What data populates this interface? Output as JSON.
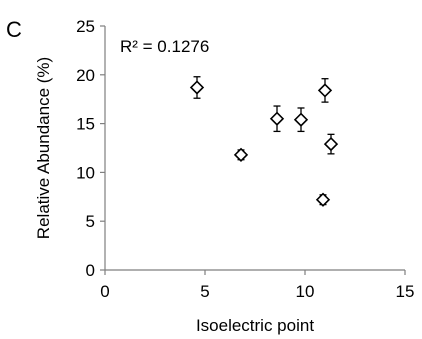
{
  "panel_label": "C",
  "chart_data": {
    "type": "scatter",
    "title": "",
    "xlabel": "Isoelectric point",
    "ylabel": "Relative Abundance (%)",
    "xlim": [
      0,
      15
    ],
    "ylim": [
      0,
      25
    ],
    "xticks": [
      "0",
      "5",
      "10",
      "15"
    ],
    "yticks": [
      "0",
      "5",
      "10",
      "15",
      "20",
      "25"
    ],
    "grid": false,
    "annotation": "R² = 0.1276",
    "marker": "diamond-open",
    "points": [
      {
        "x": 4.6,
        "y": 18.7,
        "err": 1.1
      },
      {
        "x": 6.8,
        "y": 11.8,
        "err": 0.5
      },
      {
        "x": 8.6,
        "y": 15.5,
        "err": 1.3
      },
      {
        "x": 9.8,
        "y": 15.4,
        "err": 1.2
      },
      {
        "x": 10.9,
        "y": 7.2,
        "err": 0.5
      },
      {
        "x": 11.0,
        "y": 18.4,
        "err": 1.2
      },
      {
        "x": 11.3,
        "y": 12.9,
        "err": 1.0
      }
    ]
  }
}
